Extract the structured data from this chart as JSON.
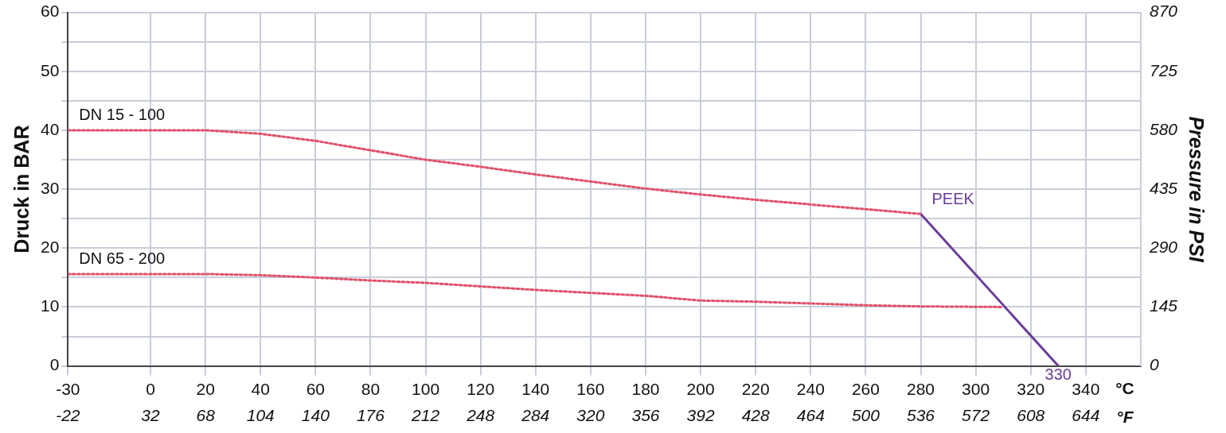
{
  "chart_data": {
    "type": "line",
    "ylabel": "Druck in BAR",
    "y2label": "Pressure in PSI",
    "xlabel": "°C",
    "x2label": "°F",
    "xlim": [
      -30,
      360
    ],
    "xticks": [
      -30,
      0,
      20,
      40,
      60,
      80,
      100,
      120,
      140,
      160,
      180,
      200,
      220,
      240,
      260,
      280,
      300,
      320,
      340
    ],
    "x2lim": [
      -22,
      680
    ],
    "x2ticks": [
      -22,
      32,
      68,
      104,
      140,
      176,
      212,
      248,
      284,
      320,
      356,
      392,
      428,
      464,
      500,
      536,
      572,
      608,
      644
    ],
    "ylim": [
      0,
      60
    ],
    "yticks": [
      0,
      {
        "value": 5,
        "label": null
      },
      10,
      {
        "value": 15,
        "label": null
      },
      20,
      {
        "value": 25,
        "label": null
      },
      30,
      {
        "value": 35,
        "label": null
      },
      40,
      {
        "value": 45,
        "label": null
      },
      50,
      {
        "value": 55,
        "label": null
      },
      60
    ],
    "y2lim": [
      0,
      870
    ],
    "y2ticks": [
      0,
      145,
      290,
      435,
      580,
      725,
      870
    ],
    "grid": true,
    "legend": false,
    "marker": "none",
    "series": [
      {
        "name": "DN 15 - 100",
        "color": "#e0506a",
        "line_style": "dotted",
        "x": [
          -30,
          0,
          20,
          40,
          60,
          80,
          100,
          120,
          140,
          160,
          180,
          200,
          220,
          240,
          260,
          280
        ],
        "values": [
          40,
          40,
          40,
          39.4,
          38.2,
          36.6,
          35,
          33.8,
          32.5,
          31.3,
          30.1,
          29.1,
          28.2,
          27.4,
          26.6,
          25.8
        ]
      },
      {
        "name": "DN 65 - 200",
        "color": "#e0506a",
        "line_style": "dotted",
        "x": [
          -30,
          0,
          20,
          40,
          60,
          80,
          100,
          120,
          140,
          160,
          180,
          200,
          220,
          240,
          260,
          280,
          310
        ],
        "values": [
          15.6,
          15.6,
          15.6,
          15.4,
          15,
          14.5,
          14.1,
          13.5,
          12.9,
          12.4,
          11.9,
          11.1,
          10.9,
          10.6,
          10.3,
          10.1,
          10
        ]
      },
      {
        "name": "PEEK",
        "color": "#6a3d9a",
        "line_style": "solid",
        "x": [
          280,
          330
        ],
        "values": [
          25.8,
          0
        ]
      }
    ],
    "annotations": [
      {
        "text": "330",
        "x": 330,
        "y": 0
      }
    ]
  }
}
